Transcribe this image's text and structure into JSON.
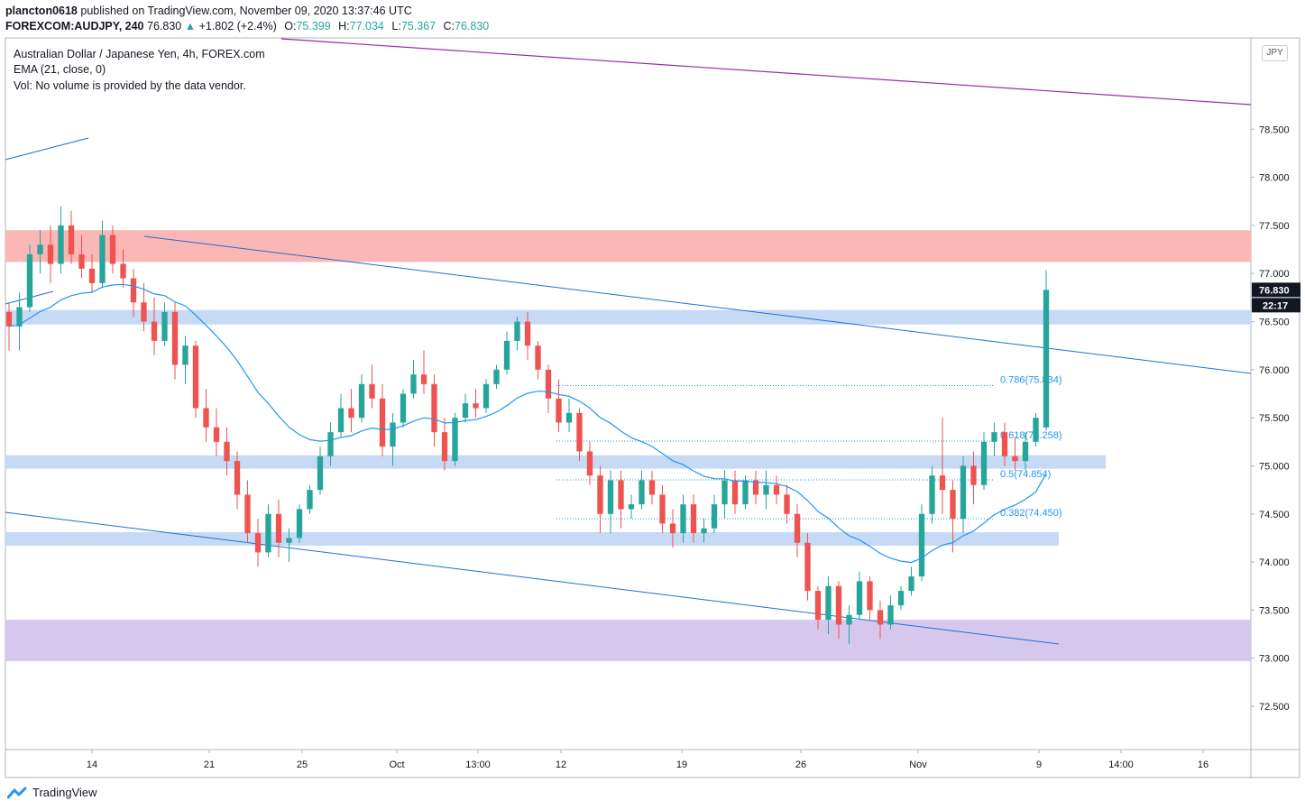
{
  "header": {
    "publisher": "plancton0618",
    "published_text": "published on TradingView.com, November 09, 2020 13:37:46 UTC",
    "symbol": "FOREXCOM:AUDJPY, 240",
    "last": "76.830",
    "change_arrow": "▲",
    "change": "+1.802 (+2.4%)",
    "o_label": "O:",
    "o_value": "75.399",
    "h_label": "H:",
    "h_value": "77.034",
    "l_label": "L:",
    "l_value": "75.367",
    "c_label": "C:",
    "c_value": "76.830"
  },
  "legend": {
    "title": "Australian Dollar / Japanese Yen, 4h, FOREX.com",
    "ema": "EMA (21, close, 0)",
    "vol": "Vol: No volume is provided by the data vendor."
  },
  "currency_button": "JPY",
  "price_tag": "76.830",
  "countdown_tag": "22:17",
  "brand": "TradingView",
  "colors": {
    "up_candle": "#26a69a",
    "down_candle": "#ef5350",
    "ema": "#2196f3",
    "channel": "#1e6fd9",
    "resistance_line": "#9c27b0",
    "red_zone": "#fbb6b6",
    "blue_zone": "#c6d9f5",
    "purple_zone": "#d5c8ec",
    "fib": "#2196f3"
  },
  "chart_data": {
    "type": "candlestick",
    "instrument": "Australian Dollar / Japanese Yen, 4h, FOREX.com",
    "y_ticks": [
      "78.500",
      "78.000",
      "77.500",
      "77.000",
      "76.500",
      "76.000",
      "75.500",
      "75.000",
      "74.500",
      "74.000",
      "73.500",
      "73.000",
      "72.500"
    ],
    "y_range": [
      72.05,
      79.45
    ],
    "x_ticks": [
      "14",
      "21",
      "25",
      "Oct",
      "13:00",
      "12",
      "19",
      "26",
      "Nov",
      "9",
      "14:00",
      "16"
    ],
    "zones": [
      {
        "name": "resistance",
        "from": 77.12,
        "to": 77.45,
        "color": "red_zone"
      },
      {
        "name": "zone",
        "from": 76.47,
        "to": 76.62,
        "color": "blue_zone"
      },
      {
        "name": "zone",
        "from": 74.97,
        "to": 75.11,
        "color": "blue_zone"
      },
      {
        "name": "zone",
        "from": 74.17,
        "to": 74.31,
        "color": "blue_zone"
      },
      {
        "name": "support",
        "from": 72.97,
        "to": 73.4,
        "color": "purple_zone"
      }
    ],
    "fibonacci": [
      {
        "label": "0.786(75.834)",
        "level": 75.834
      },
      {
        "label": "0.618(75.258)",
        "level": 75.258
      },
      {
        "label": "0.5(74.854)",
        "level": 74.854
      },
      {
        "label": "0.382(74.450)",
        "level": 74.45
      }
    ],
    "candles": [
      [
        76.6,
        76.7,
        76.2,
        76.45
      ],
      [
        76.45,
        76.8,
        76.2,
        76.65
      ],
      [
        76.65,
        77.3,
        76.6,
        77.2
      ],
      [
        77.2,
        77.45,
        77.0,
        77.3
      ],
      [
        77.3,
        77.5,
        76.9,
        77.1
      ],
      [
        77.1,
        77.7,
        77.0,
        77.5
      ],
      [
        77.5,
        77.65,
        77.1,
        77.2
      ],
      [
        77.2,
        77.4,
        76.95,
        77.05
      ],
      [
        77.05,
        77.2,
        76.8,
        76.9
      ],
      [
        76.9,
        77.55,
        76.85,
        77.4
      ],
      [
        77.4,
        77.5,
        77.0,
        77.1
      ],
      [
        77.1,
        77.25,
        76.85,
        76.95
      ],
      [
        76.95,
        77.05,
        76.55,
        76.7
      ],
      [
        76.7,
        76.9,
        76.4,
        76.5
      ],
      [
        76.5,
        76.75,
        76.15,
        76.3
      ],
      [
        76.3,
        76.7,
        76.25,
        76.6
      ],
      [
        76.6,
        76.7,
        75.9,
        76.05
      ],
      [
        76.05,
        76.35,
        75.85,
        76.25
      ],
      [
        76.25,
        76.3,
        75.5,
        75.6
      ],
      [
        75.6,
        75.8,
        75.25,
        75.4
      ],
      [
        75.4,
        75.6,
        75.1,
        75.25
      ],
      [
        75.25,
        75.4,
        74.9,
        75.05
      ],
      [
        75.05,
        75.15,
        74.55,
        74.7
      ],
      [
        74.7,
        74.85,
        74.2,
        74.3
      ],
      [
        74.3,
        74.45,
        73.95,
        74.1
      ],
      [
        74.1,
        74.6,
        74.05,
        74.5
      ],
      [
        74.5,
        74.65,
        74.05,
        74.2
      ],
      [
        74.2,
        74.35,
        74.0,
        74.25
      ],
      [
        74.25,
        74.6,
        74.2,
        74.55
      ],
      [
        74.55,
        74.8,
        74.5,
        74.75
      ],
      [
        74.75,
        75.2,
        74.7,
        75.1
      ],
      [
        75.1,
        75.45,
        75.0,
        75.35
      ],
      [
        75.35,
        75.75,
        75.3,
        75.6
      ],
      [
        75.6,
        75.8,
        75.35,
        75.5
      ],
      [
        75.5,
        75.95,
        75.45,
        75.85
      ],
      [
        75.85,
        76.05,
        75.6,
        75.7
      ],
      [
        75.7,
        75.85,
        75.1,
        75.2
      ],
      [
        75.2,
        75.55,
        75.0,
        75.45
      ],
      [
        75.45,
        75.8,
        75.4,
        75.75
      ],
      [
        75.75,
        76.1,
        75.7,
        75.95
      ],
      [
        75.95,
        76.2,
        75.75,
        75.85
      ],
      [
        75.85,
        75.95,
        75.2,
        75.35
      ],
      [
        75.35,
        75.5,
        74.95,
        75.05
      ],
      [
        75.05,
        75.55,
        75.0,
        75.5
      ],
      [
        75.5,
        75.75,
        75.45,
        75.65
      ],
      [
        75.65,
        75.8,
        75.5,
        75.6
      ],
      [
        75.6,
        75.9,
        75.55,
        75.85
      ],
      [
        75.85,
        76.05,
        75.8,
        76.0
      ],
      [
        76.0,
        76.4,
        75.95,
        76.3
      ],
      [
        76.3,
        76.55,
        76.2,
        76.5
      ],
      [
        76.5,
        76.6,
        76.1,
        76.25
      ],
      [
        76.25,
        76.3,
        75.9,
        76.0
      ],
      [
        76.0,
        76.05,
        75.55,
        75.7
      ],
      [
        75.7,
        75.9,
        75.35,
        75.45
      ],
      [
        75.45,
        75.7,
        75.35,
        75.55
      ],
      [
        75.55,
        75.6,
        75.05,
        75.15
      ],
      [
        75.15,
        75.25,
        74.8,
        74.9
      ],
      [
        74.9,
        75.0,
        74.3,
        74.5
      ],
      [
        74.5,
        74.95,
        74.3,
        74.85
      ],
      [
        74.85,
        74.95,
        74.35,
        74.55
      ],
      [
        74.55,
        74.7,
        74.45,
        74.6
      ],
      [
        74.6,
        74.95,
        74.55,
        74.85
      ],
      [
        74.85,
        74.95,
        74.6,
        74.7
      ],
      [
        74.7,
        74.8,
        74.3,
        74.4
      ],
      [
        74.4,
        74.55,
        74.15,
        74.3
      ],
      [
        74.3,
        74.7,
        74.2,
        74.6
      ],
      [
        74.6,
        74.7,
        74.2,
        74.3
      ],
      [
        74.3,
        74.45,
        74.2,
        74.35
      ],
      [
        74.35,
        74.7,
        74.3,
        74.6
      ],
      [
        74.6,
        74.95,
        74.45,
        74.85
      ],
      [
        74.85,
        74.95,
        74.5,
        74.6
      ],
      [
        74.6,
        74.9,
        74.55,
        74.85
      ],
      [
        74.85,
        74.95,
        74.6,
        74.7
      ],
      [
        74.7,
        74.95,
        74.55,
        74.8
      ],
      [
        74.8,
        74.9,
        74.6,
        74.7
      ],
      [
        74.7,
        74.8,
        74.4,
        74.5
      ],
      [
        74.5,
        74.6,
        74.05,
        74.2
      ],
      [
        74.2,
        74.3,
        73.6,
        73.7
      ],
      [
        73.7,
        73.75,
        73.3,
        73.4
      ],
      [
        73.4,
        73.85,
        73.25,
        73.75
      ],
      [
        73.75,
        73.8,
        73.2,
        73.35
      ],
      [
        73.35,
        73.55,
        73.15,
        73.45
      ],
      [
        73.45,
        73.9,
        73.4,
        73.8
      ],
      [
        73.8,
        73.85,
        73.4,
        73.5
      ],
      [
        73.5,
        73.6,
        73.2,
        73.35
      ],
      [
        73.35,
        73.65,
        73.3,
        73.55
      ],
      [
        73.55,
        73.75,
        73.5,
        73.7
      ],
      [
        73.7,
        73.95,
        73.65,
        73.85
      ],
      [
        73.85,
        74.6,
        73.8,
        74.5
      ],
      [
        74.5,
        75.0,
        74.4,
        74.9
      ],
      [
        74.9,
        75.5,
        74.5,
        74.75
      ],
      [
        74.75,
        74.85,
        74.1,
        74.45
      ],
      [
        74.45,
        75.1,
        74.3,
        75.0
      ],
      [
        75.0,
        75.15,
        74.6,
        74.8
      ],
      [
        74.8,
        75.35,
        74.75,
        75.25
      ],
      [
        75.25,
        75.45,
        75.1,
        75.35
      ],
      [
        75.35,
        75.45,
        75.0,
        75.1
      ],
      [
        75.1,
        75.3,
        74.95,
        75.05
      ],
      [
        75.05,
        75.35,
        74.95,
        75.25
      ],
      [
        75.25,
        75.55,
        75.2,
        75.5
      ],
      [
        75.399,
        77.034,
        75.367,
        76.83
      ]
    ],
    "last_price": 76.83
  }
}
